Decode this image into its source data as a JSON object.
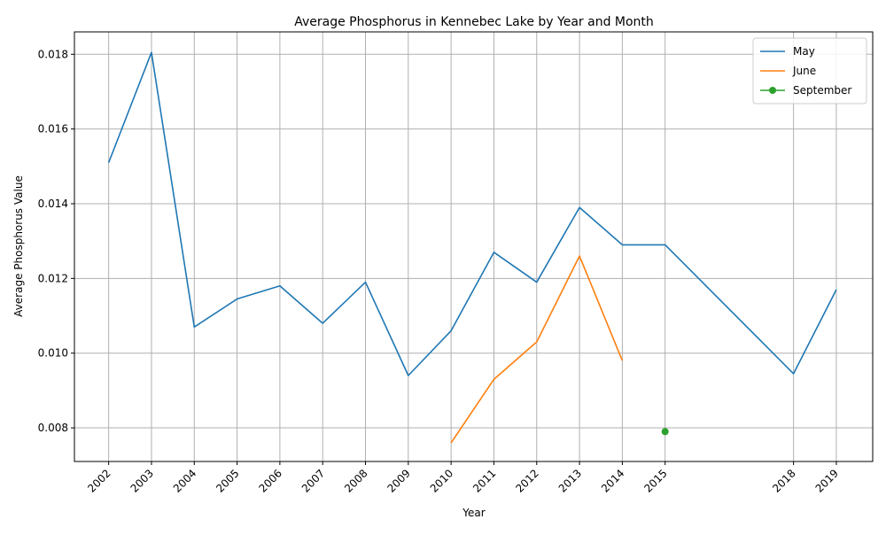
{
  "chart_data": {
    "type": "line",
    "title": "Average Phosphorus in Kennebec Lake by Year and Month",
    "xlabel": "Year",
    "ylabel": "Average Phosphorus Value",
    "xlim": [
      2001.2,
      2019.85
    ],
    "ylim": [
      0.0071,
      0.0186
    ],
    "xticks": [
      2002,
      2003,
      2004,
      2005,
      2006,
      2007,
      2008,
      2009,
      2010,
      2011,
      2012,
      2013,
      2014,
      2015,
      2018,
      2019
    ],
    "yticks": [
      0.008,
      0.01,
      0.012,
      0.014,
      0.016,
      0.018
    ],
    "ytick_labels": [
      "0.008",
      "0.010",
      "0.012",
      "0.014",
      "0.016",
      "0.018"
    ],
    "grid": true,
    "legend_position": "top-right",
    "series": [
      {
        "name": "May",
        "color": "#1f77b4",
        "marker": "none",
        "x": [
          2002,
          2003,
          2004,
          2005,
          2006,
          2007,
          2008,
          2009,
          2010,
          2011,
          2012,
          2013,
          2014,
          2015,
          2018,
          2019
        ],
        "y": [
          0.0151,
          0.01805,
          0.0107,
          0.01145,
          0.0118,
          0.0108,
          0.0119,
          0.0094,
          0.0106,
          0.0127,
          0.0119,
          0.0139,
          0.0129,
          0.0129,
          0.00945,
          0.0117
        ]
      },
      {
        "name": "June",
        "color": "#ff7f0e",
        "marker": "none",
        "x": [
          2010,
          2011,
          2012,
          2013,
          2014
        ],
        "y": [
          0.0076,
          0.0093,
          0.0103,
          0.0126,
          0.0098
        ]
      },
      {
        "name": "September",
        "color": "#2ca02c",
        "marker": "circle",
        "x": [
          2015
        ],
        "y": [
          0.0079
        ]
      }
    ]
  }
}
